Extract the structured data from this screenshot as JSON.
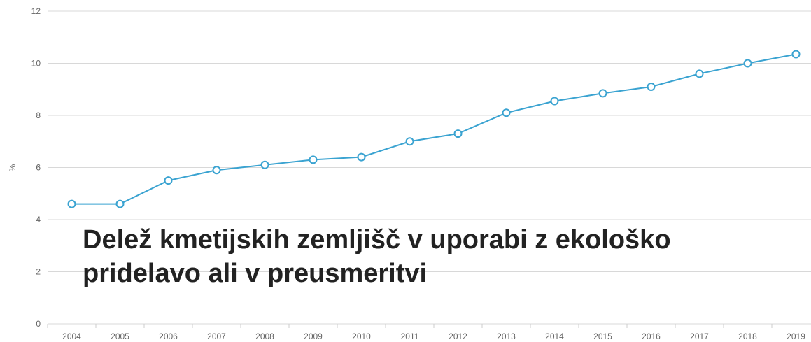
{
  "chart_data": {
    "type": "line",
    "title": "Delež kmetijskih zemljišč v uporabi z ekološko pridelavo ali v preusmeritvi",
    "y_label": "%",
    "categories": [
      "2004",
      "2005",
      "2006",
      "2007",
      "2008",
      "2009",
      "2010",
      "2011",
      "2012",
      "2013",
      "2014",
      "2015",
      "2016",
      "2017",
      "2018",
      "2019"
    ],
    "series": [
      {
        "name": "Delež",
        "color": "#3aa3d1",
        "values": [
          4.6,
          4.6,
          5.5,
          5.9,
          6.1,
          6.3,
          6.4,
          7.0,
          7.3,
          8.1,
          8.55,
          8.85,
          9.1,
          9.6,
          10.0,
          10.35
        ]
      }
    ],
    "ylim": [
      0,
      12
    ],
    "yticks": [
      0,
      2,
      4,
      6,
      8,
      10,
      12
    ],
    "grid": true
  }
}
